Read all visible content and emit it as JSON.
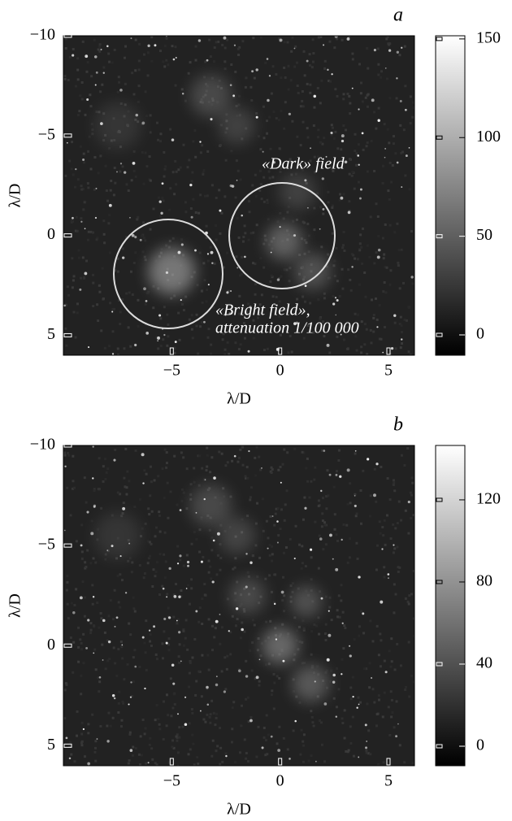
{
  "chart_data": [
    {
      "type": "image",
      "title": "a",
      "xlabel": "λ/D",
      "ylabel": "λ/D",
      "xlim": [
        -10,
        6.2
      ],
      "ylim": [
        -10,
        6
      ],
      "y_inverted": true,
      "xticks": [
        {
          "value": -5,
          "label": "−5"
        },
        0,
        5
      ],
      "yticks": [
        {
          "value": -10,
          "label": "−10"
        },
        {
          "value": -5,
          "label": "−5"
        },
        0,
        5
      ],
      "colorbar": {
        "lim": [
          -10.3,
          151.6
        ],
        "ticks": [
          0,
          50,
          100,
          150
        ]
      },
      "annotations": [
        "«Dark» field",
        "«Bright field»,",
        "attenuation 1/100 000"
      ]
    },
    {
      "type": "image",
      "title": "b",
      "xlabel": "λ/D",
      "ylabel": "λ/D",
      "xlim": [
        -10,
        6.2
      ],
      "ylim": [
        -10,
        6
      ],
      "y_inverted": true,
      "xticks": [
        {
          "value": -5,
          "label": "−5"
        },
        0,
        5
      ],
      "yticks": [
        {
          "value": -10,
          "label": "−10"
        },
        {
          "value": -5,
          "label": "−5"
        },
        0,
        5
      ],
      "colorbar": {
        "lim": [
          -9.5,
          146.5
        ],
        "ticks": [
          0,
          40,
          80,
          120
        ]
      }
    }
  ]
}
